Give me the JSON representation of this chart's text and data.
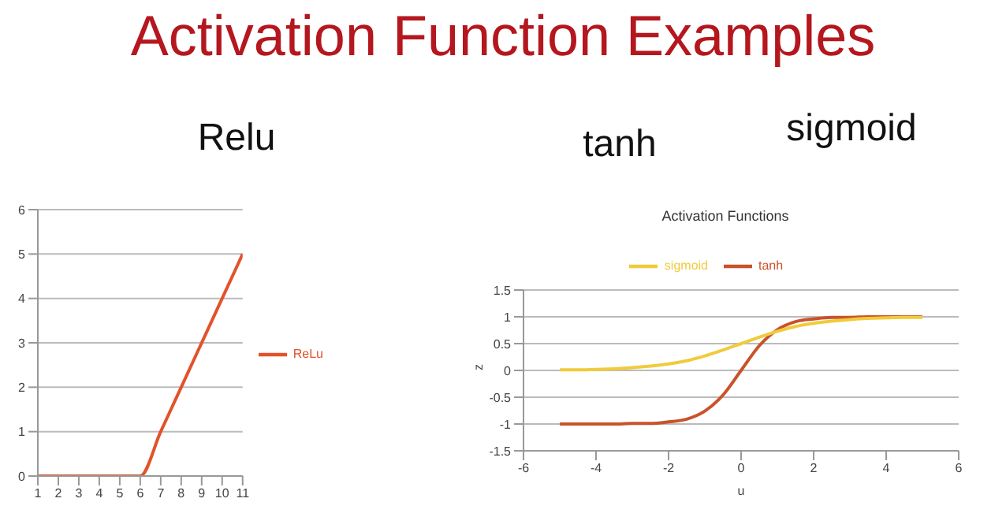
{
  "chart_data": [
    {
      "type": "line",
      "title": "Activation Function Examples",
      "subtitle": "Relu",
      "x": [
        1,
        2,
        3,
        4,
        5,
        6,
        7,
        8,
        9,
        10,
        11
      ],
      "xlim": [
        1,
        11
      ],
      "xticks": [
        1,
        2,
        3,
        4,
        5,
        6,
        7,
        8,
        9,
        10,
        11
      ],
      "ylim": [
        0,
        6
      ],
      "yticks": [
        0,
        1,
        2,
        3,
        4,
        5,
        6
      ],
      "grid": "y",
      "legend": "right",
      "series": [
        {
          "name": "ReLu",
          "color": "#e2522b",
          "values": [
            0,
            0,
            0,
            0,
            0,
            0,
            1,
            2,
            3,
            4,
            5
          ]
        }
      ]
    },
    {
      "type": "line",
      "title": "Activation Functions",
      "annotations": [
        "tanh",
        "sigmoid"
      ],
      "xlabel": "u",
      "ylabel": "z",
      "x": [
        -5,
        -4.5,
        -4,
        -3.5,
        -3,
        -2.5,
        -2,
        -1.5,
        -1,
        -0.5,
        0,
        0.5,
        1,
        1.5,
        2,
        2.5,
        3,
        3.5,
        4,
        4.5,
        5
      ],
      "xlim": [
        -6,
        6
      ],
      "xticks": [
        -6,
        -4,
        -2,
        0,
        2,
        4,
        6
      ],
      "ylim": [
        -1.5,
        1.5
      ],
      "yticks": [
        -1.5,
        -1,
        -0.5,
        0,
        0.5,
        1,
        1.5
      ],
      "grid": "y",
      "legend": "top",
      "series": [
        {
          "name": "tanh",
          "color": "#c9522a",
          "values": [
            -1,
            -1,
            -1,
            -1,
            -0.99,
            -0.99,
            -0.96,
            -0.91,
            -0.76,
            -0.46,
            0,
            0.46,
            0.76,
            0.91,
            0.96,
            0.99,
            0.99,
            1,
            1,
            1,
            1
          ]
        },
        {
          "name": "sigmoid",
          "color": "#f0cb3c",
          "values": [
            0.01,
            0.01,
            0.02,
            0.03,
            0.05,
            0.08,
            0.12,
            0.18,
            0.27,
            0.38,
            0.5,
            0.62,
            0.73,
            0.82,
            0.88,
            0.92,
            0.95,
            0.97,
            0.98,
            0.99,
            0.99
          ]
        }
      ]
    }
  ]
}
